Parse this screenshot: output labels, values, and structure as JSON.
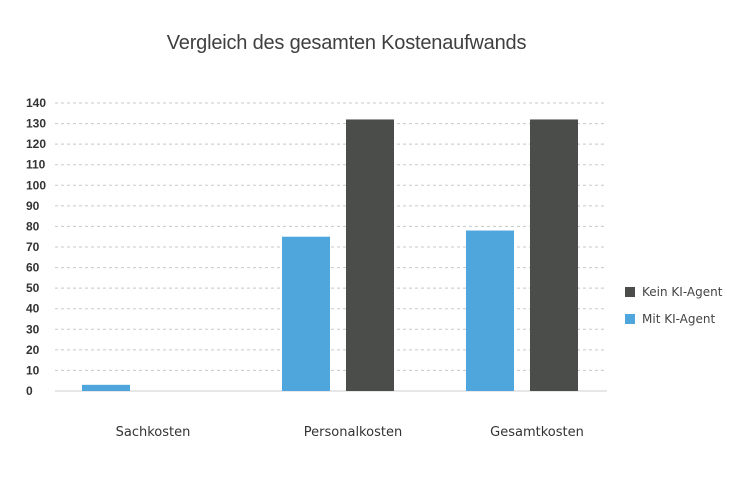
{
  "chart_data": {
    "type": "bar",
    "title": "Vergleich des gesamten Kostenaufwands",
    "xlabel": "",
    "ylabel": "",
    "ylim": [
      0,
      140
    ],
    "yticks": [
      0,
      10,
      20,
      30,
      40,
      50,
      60,
      70,
      80,
      90,
      100,
      110,
      120,
      130,
      140
    ],
    "grid": true,
    "legend_position": "right",
    "categories": [
      "Sachkosten",
      "Personalkosten",
      "Gesamtkosten"
    ],
    "series": [
      {
        "name": "Mit KI-Agent",
        "color": "#4ea6dc",
        "values": [
          3,
          75,
          78
        ]
      },
      {
        "name": "Kein KI-Agent",
        "color": "#4b4d4b",
        "values": [
          0,
          132,
          132
        ]
      }
    ]
  }
}
